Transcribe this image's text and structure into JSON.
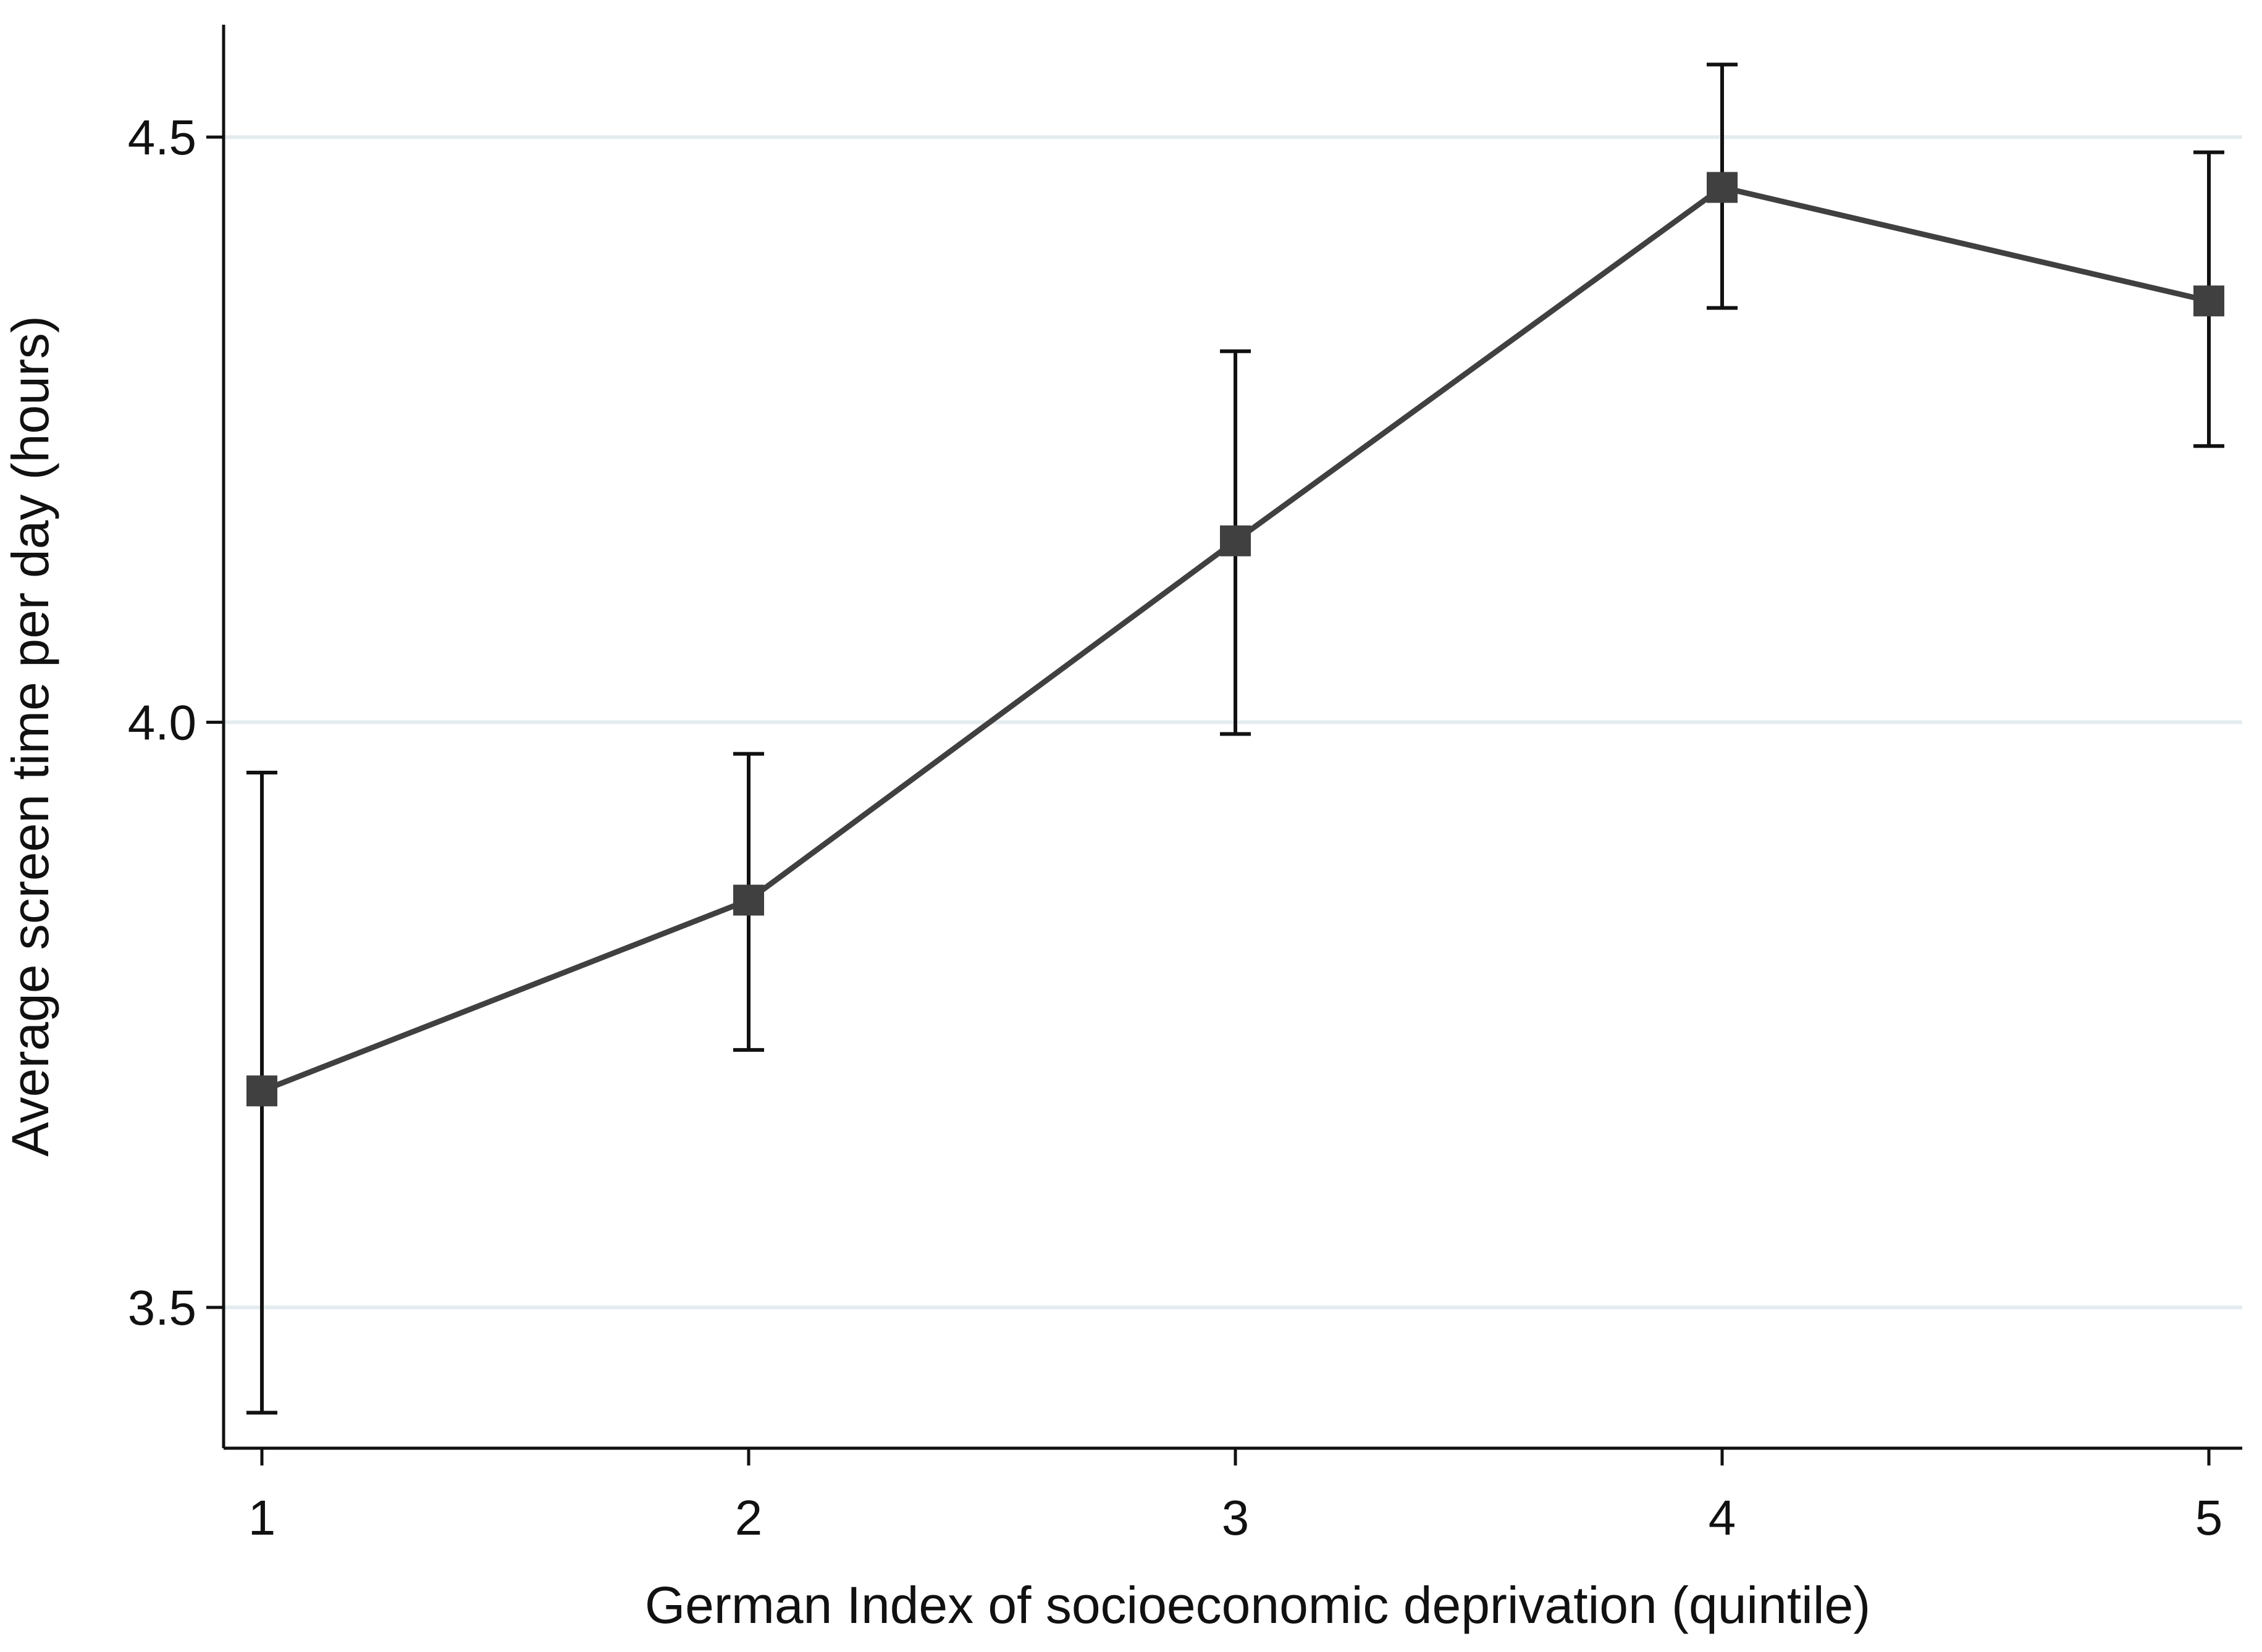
{
  "chart_data": {
    "type": "line",
    "title": "",
    "xlabel": "German Index of socioeconomic deprivation (quintile)",
    "ylabel": "Average screen time per day (hours)",
    "x": [
      1,
      2,
      3,
      4,
      5
    ],
    "x_ticks": [
      "1",
      "2",
      "3",
      "4",
      "5"
    ],
    "y_ticks": [
      3.5,
      4.0,
      4.5
    ],
    "y_tick_labels": [
      "3.5",
      "4.0",
      "4.5"
    ],
    "xlim": [
      0.92,
      5.08
    ],
    "ylim": [
      3.38,
      4.595
    ],
    "grid": "horizontal",
    "series": [
      {
        "values": [
          3.685,
          3.848,
          4.155,
          4.457,
          4.36
        ],
        "ci_low": [
          3.41,
          3.72,
          3.99,
          4.354,
          4.236
        ],
        "ci_high": [
          3.957,
          3.973,
          4.317,
          4.562,
          4.487
        ]
      }
    ],
    "colors": {
      "line": "#404040",
      "marker": "#404040",
      "errorbar": "#111111",
      "grid": "#e4ecf0",
      "axis": "#111111"
    }
  }
}
